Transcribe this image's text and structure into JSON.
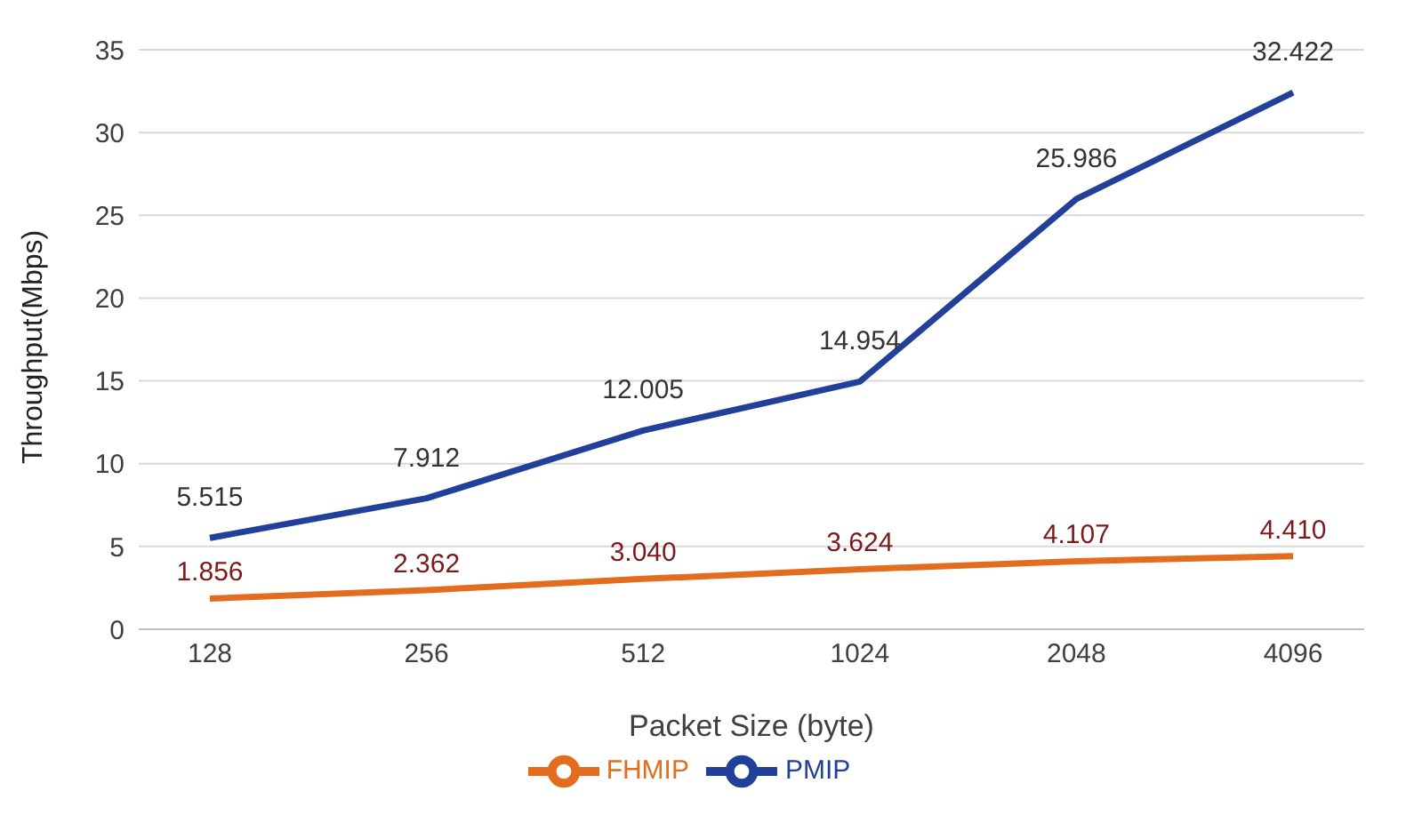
{
  "chart_data": {
    "type": "line",
    "xlabel": "Packet Size (byte)",
    "ylabel": "Throughput(Mbps)",
    "categories": [
      "128",
      "256",
      "512",
      "1024",
      "2048",
      "4096"
    ],
    "series": [
      {
        "name": "PMIP",
        "color": "#22409a",
        "values": [
          5.515,
          7.912,
          12.005,
          14.954,
          25.986,
          32.422
        ],
        "value_labels": [
          "5.515",
          "7.912",
          "12.005",
          "14.954",
          "25.986",
          "32.422"
        ]
      },
      {
        "name": "FHMIP",
        "color": "#e46c1e",
        "values": [
          1.856,
          2.362,
          3.04,
          3.624,
          4.107,
          4.41
        ],
        "value_labels": [
          "1.856",
          "2.362",
          "3.040",
          "3.624",
          "4.107",
          "4.410"
        ]
      }
    ],
    "ylim": [
      0,
      35
    ],
    "yticks": [
      0,
      5,
      10,
      15,
      20,
      25,
      30,
      35
    ],
    "grid": "y",
    "legend": "bottom",
    "marker": "none",
    "line_style": "solid"
  }
}
